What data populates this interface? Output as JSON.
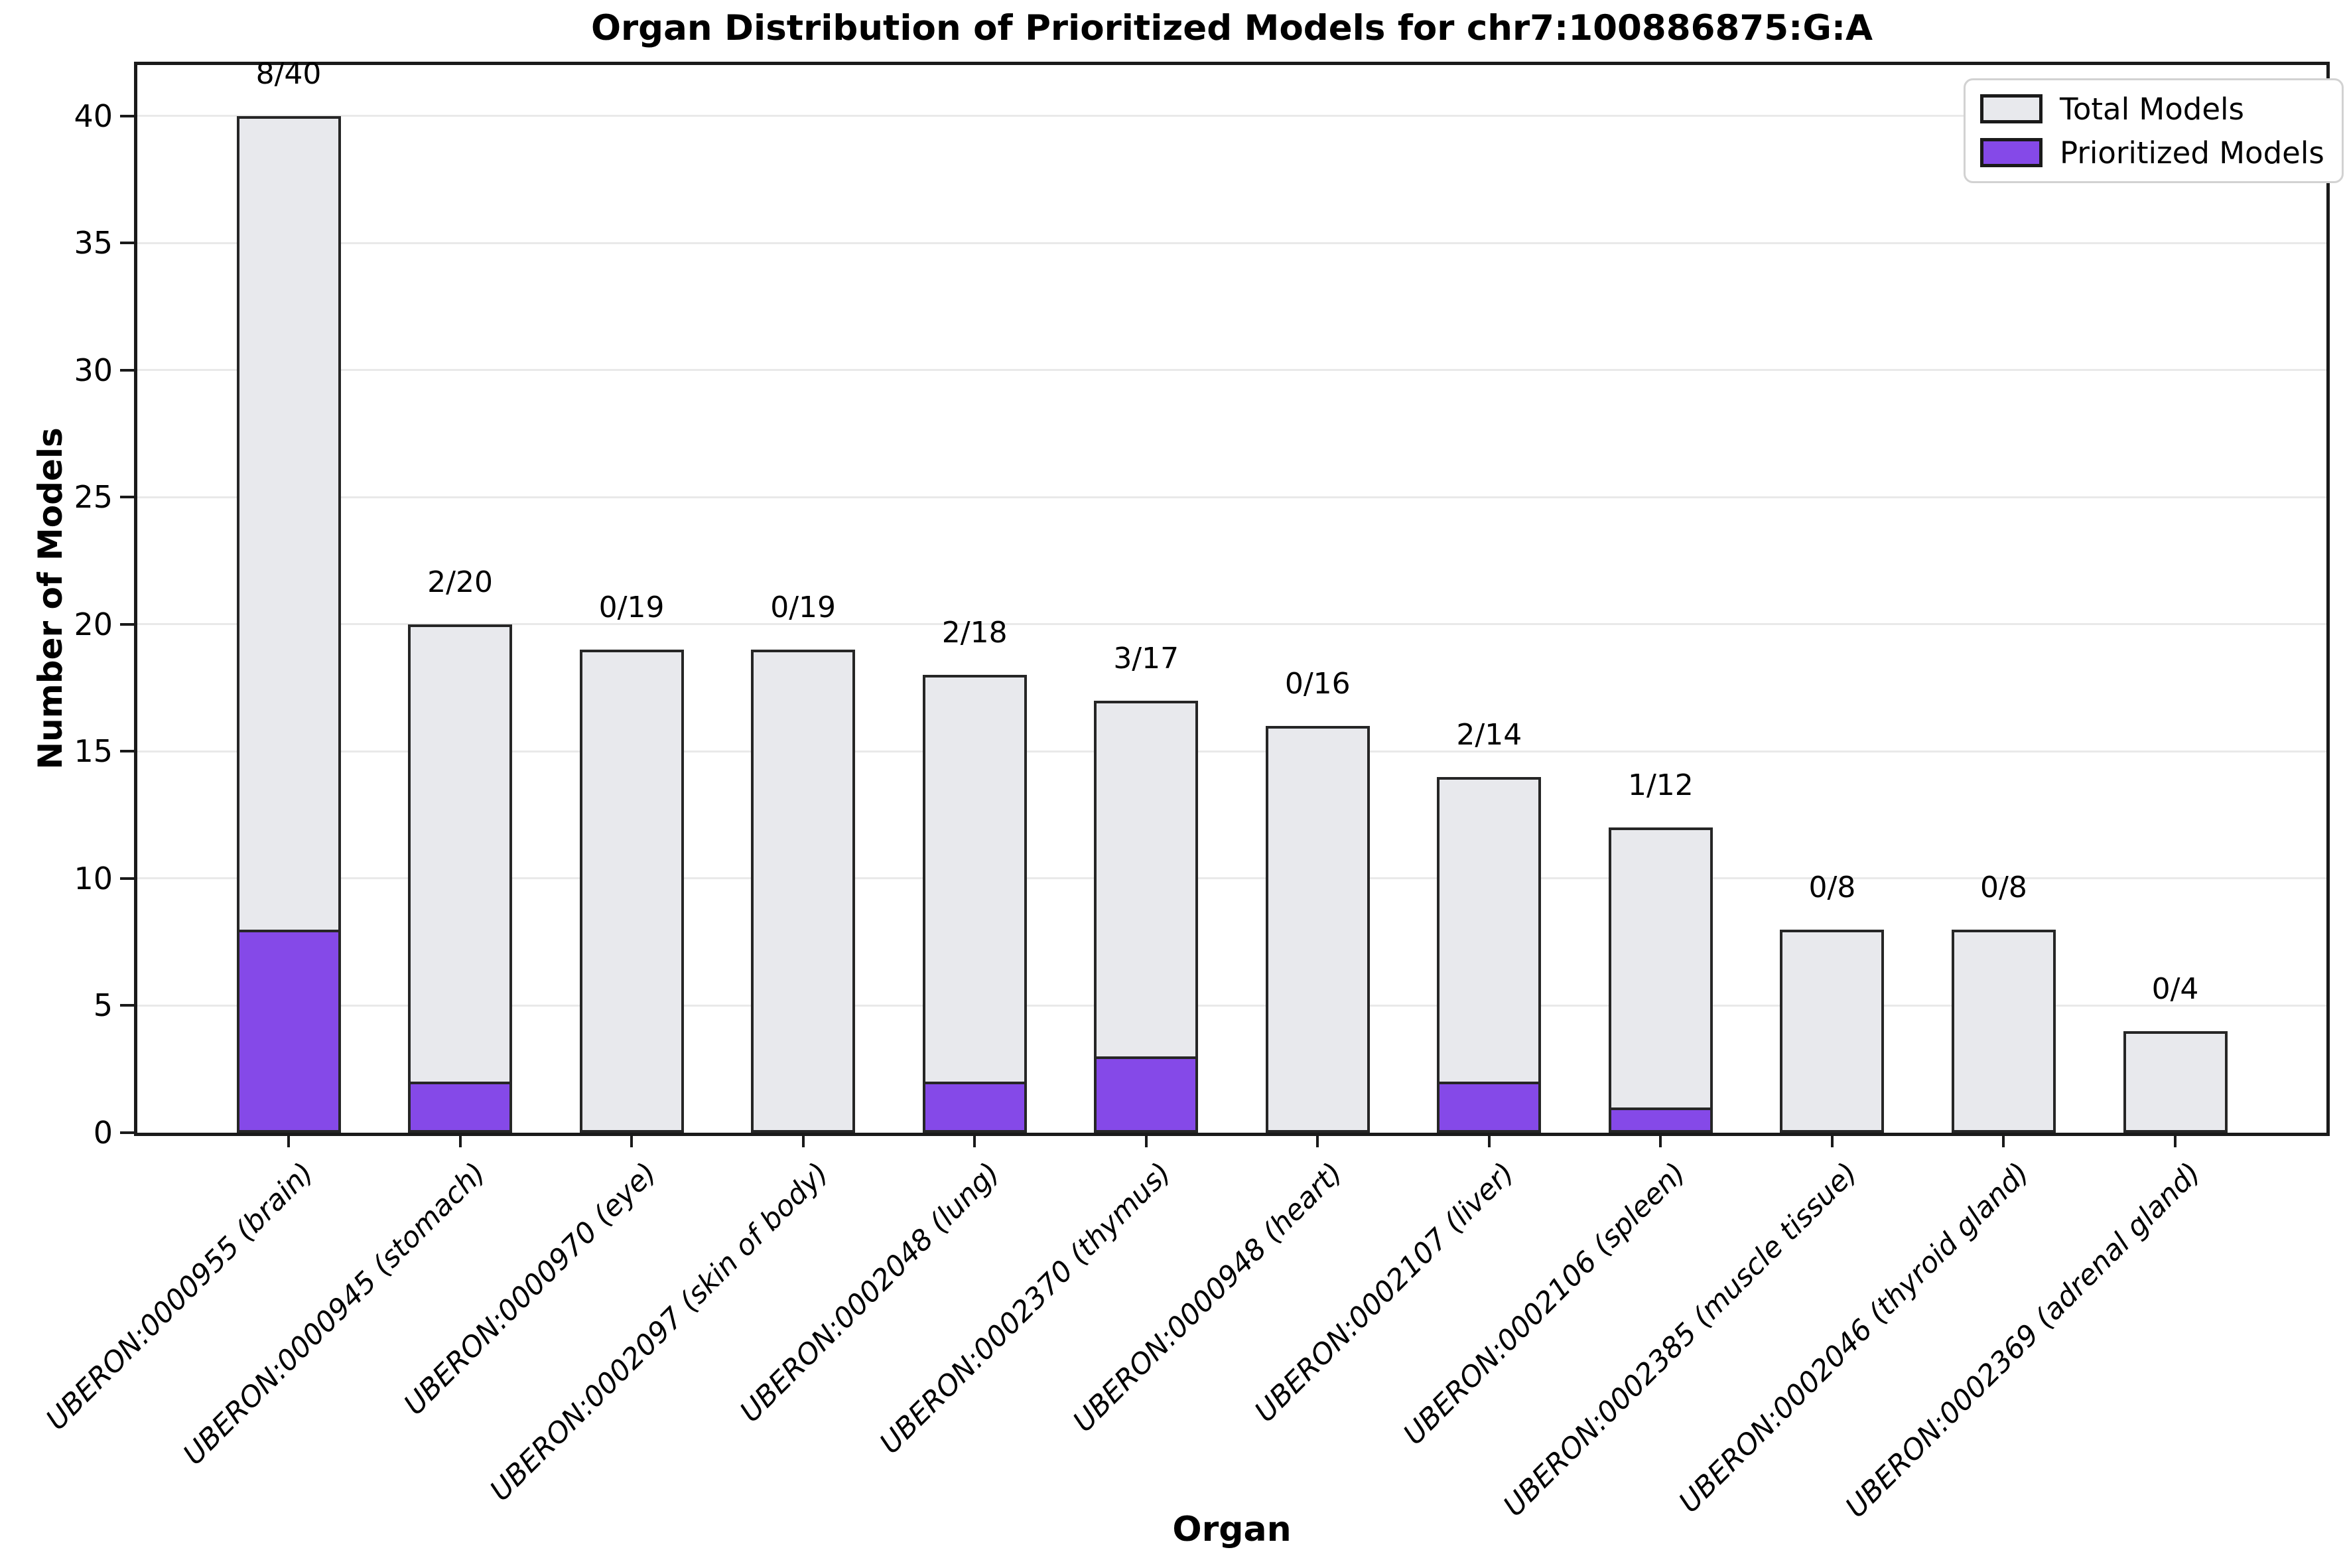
{
  "chart_data": {
    "type": "bar",
    "title": "Organ Distribution of Prioritized Models for chr7:100886875:G:A",
    "xlabel": "Organ",
    "ylabel": "Number of Models",
    "ylim": [
      0,
      42
    ],
    "y_ticks": [
      0,
      5,
      10,
      15,
      20,
      25,
      30,
      35,
      40
    ],
    "grid": "horizontal",
    "legend_position": "upper right",
    "categories": [
      "UBERON:0000955 (brain)",
      "UBERON:0000945 (stomach)",
      "UBERON:0000970 (eye)",
      "UBERON:0002097 (skin of body)",
      "UBERON:0002048 (lung)",
      "UBERON:0002370 (thymus)",
      "UBERON:0000948 (heart)",
      "UBERON:0002107 (liver)",
      "UBERON:0002106 (spleen)",
      "UBERON:0002385 (muscle tissue)",
      "UBERON:0002046 (thyroid gland)",
      "UBERON:0002369 (adrenal gland)"
    ],
    "series": [
      {
        "name": "Total Models",
        "color": "#e8e9ed",
        "values": [
          40,
          20,
          19,
          19,
          18,
          17,
          16,
          14,
          12,
          8,
          8,
          4
        ]
      },
      {
        "name": "Prioritized Models",
        "color": "#8549e8",
        "values": [
          8,
          2,
          0,
          0,
          2,
          3,
          0,
          2,
          1,
          0,
          0,
          0
        ]
      }
    ],
    "bar_labels": [
      "8/40",
      "2/20",
      "0/19",
      "0/19",
      "2/18",
      "3/17",
      "0/16",
      "2/14",
      "1/12",
      "0/8",
      "0/8",
      "0/4"
    ],
    "bar_edge_color": "#262626",
    "grid_color": "#e9e9e9"
  }
}
